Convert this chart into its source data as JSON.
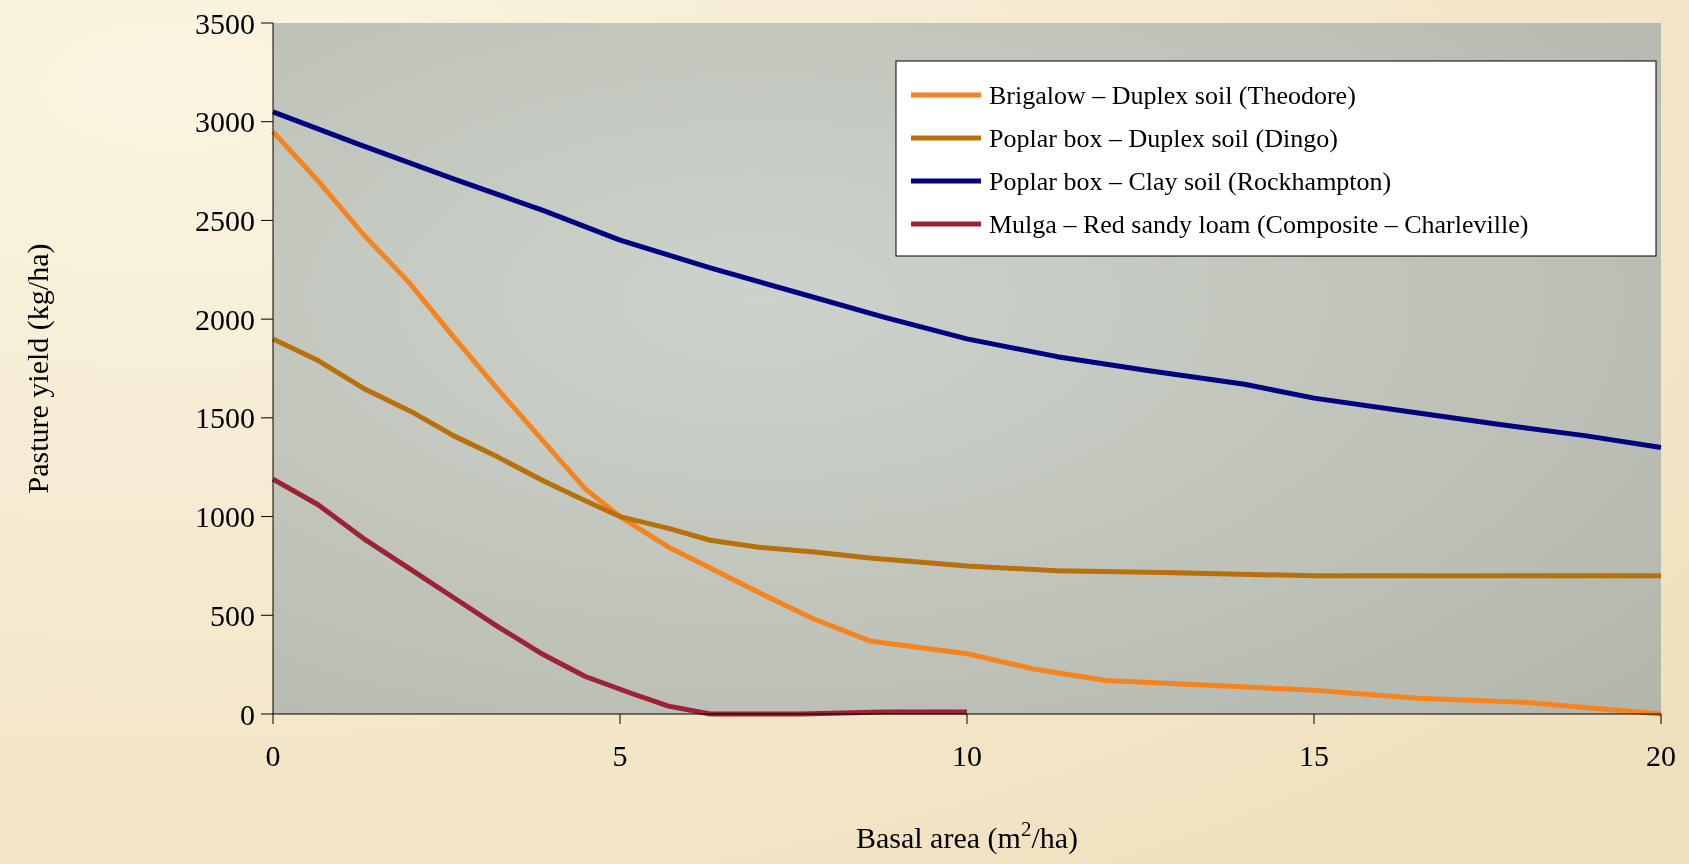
{
  "chart_data": {
    "type": "line",
    "xlabel": "Basal area (m$^{2}$/ha)",
    "ylabel": "Pasture yield (kg/ha)",
    "xlim": [
      0,
      20
    ],
    "xticks": [
      0,
      5,
      10,
      15,
      20
    ],
    "ylim": [
      0,
      3500
    ],
    "yticks": [
      0,
      500,
      1000,
      1500,
      2000,
      2500,
      3000,
      3500
    ],
    "grid": false,
    "legend": "top right",
    "marker": "none",
    "line_style": "solid",
    "series": [
      {
        "name": "Brigalow – Duplex soil (Theodore)",
        "color": "#f5841f",
        "x": [
          0,
          0.65,
          1.3,
          1.95,
          2.6,
          3.25,
          3.9,
          4.5,
          5,
          5.7,
          6.3,
          7,
          7.8,
          8.6,
          10,
          11,
          12,
          13.8,
          15,
          16.5,
          18,
          20
        ],
        "values": [
          2950,
          2700,
          2430,
          2190,
          1910,
          1640,
          1380,
          1140,
          1000,
          845,
          740,
          615,
          480,
          370,
          305,
          225,
          170,
          140,
          120,
          80,
          60,
          0
        ]
      },
      {
        "name": "Poplar box – Duplex soil (Dingo)",
        "color": "#b8700a",
        "x": [
          0,
          0.65,
          1.3,
          2,
          2.6,
          3.25,
          3.9,
          4.5,
          5,
          5.7,
          6.3,
          7,
          7.8,
          8.6,
          10,
          11.3,
          13,
          15,
          20
        ],
        "values": [
          1900,
          1790,
          1650,
          1530,
          1410,
          1300,
          1180,
          1080,
          1000,
          940,
          880,
          845,
          820,
          790,
          750,
          725,
          715,
          700,
          700
        ]
      },
      {
        "name": "Poplar box – Clay soil (Rockhampton)",
        "color": "#000080",
        "x": [
          0,
          1.2,
          2.6,
          3.9,
          5,
          6.3,
          7.6,
          8.8,
          10,
          11.3,
          12.6,
          14,
          15,
          16.4,
          17.6,
          18.9,
          20
        ],
        "values": [
          3050,
          2890,
          2710,
          2550,
          2400,
          2260,
          2130,
          2010,
          1900,
          1810,
          1740,
          1670,
          1600,
          1530,
          1470,
          1410,
          1350
        ]
      },
      {
        "name": "Mulga – Red sandy loam (Composite – Charleville)",
        "color": "#9b2335",
        "x": [
          0,
          0.65,
          1.3,
          1.95,
          2.6,
          3.25,
          3.9,
          4.5,
          5.2,
          5.7,
          6.3,
          7,
          7.6,
          8.8,
          10
        ],
        "values": [
          1190,
          1060,
          890,
          740,
          590,
          440,
          300,
          190,
          100,
          40,
          0,
          0,
          0,
          10,
          10
        ]
      }
    ]
  }
}
